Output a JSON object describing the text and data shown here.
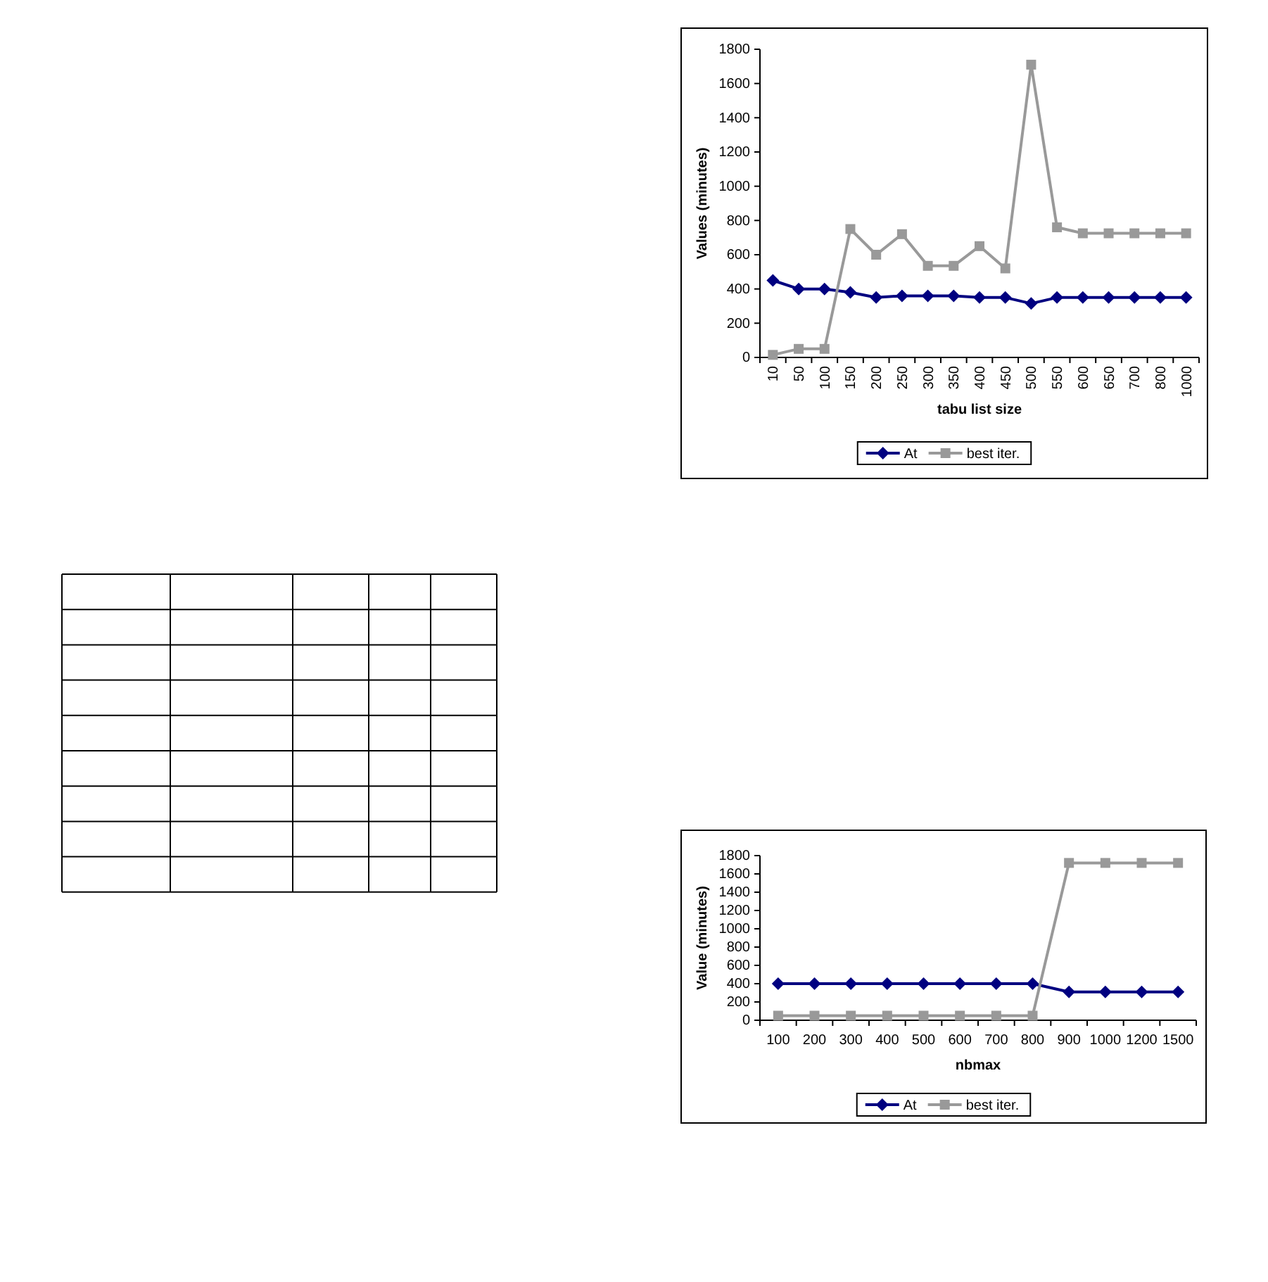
{
  "chart_data": [
    {
      "type": "line",
      "xlabel": "tabu list size",
      "ylabel": "Values (minutes)",
      "categories": [
        "10",
        "50",
        "100",
        "150",
        "200",
        "250",
        "300",
        "350",
        "400",
        "450",
        "500",
        "550",
        "600",
        "650",
        "700",
        "800",
        "1000"
      ],
      "ylim": [
        0,
        1800
      ],
      "yticks": [
        0,
        200,
        400,
        600,
        800,
        1000,
        1200,
        1400,
        1600,
        1800
      ],
      "grid": false,
      "legend": "bottom",
      "series": [
        {
          "name": "At",
          "color": "#000080",
          "marker": "diamond",
          "values": [
            450,
            400,
            400,
            380,
            350,
            360,
            360,
            360,
            350,
            350,
            315,
            350,
            350,
            350,
            350,
            350,
            350
          ]
        },
        {
          "name": "best iter.",
          "color": "#999999",
          "marker": "square",
          "values": [
            15,
            50,
            50,
            750,
            600,
            720,
            535,
            535,
            650,
            520,
            1710,
            760,
            725,
            725,
            725,
            725,
            725
          ]
        }
      ]
    },
    {
      "type": "line",
      "xlabel": "nbmax",
      "ylabel": "Value (minutes)",
      "categories": [
        "100",
        "200",
        "300",
        "400",
        "500",
        "600",
        "700",
        "800",
        "900",
        "1000",
        "1200",
        "1500"
      ],
      "ylim": [
        0,
        1800
      ],
      "yticks": [
        0,
        200,
        400,
        600,
        800,
        1000,
        1200,
        1400,
        1600,
        1800
      ],
      "grid": false,
      "legend": "bottom",
      "series": [
        {
          "name": "At",
          "color": "#000080",
          "marker": "diamond",
          "values": [
            400,
            400,
            400,
            400,
            400,
            400,
            400,
            400,
            310,
            310,
            310,
            310
          ]
        },
        {
          "name": "best iter.",
          "color": "#999999",
          "marker": "square",
          "values": [
            50,
            50,
            50,
            50,
            50,
            50,
            50,
            50,
            1720,
            1720,
            1720,
            1720
          ]
        }
      ]
    }
  ]
}
